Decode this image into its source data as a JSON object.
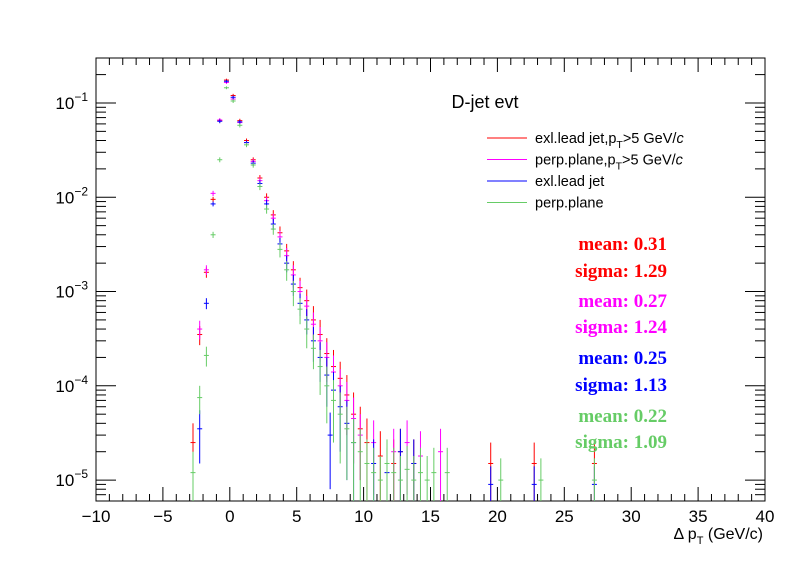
{
  "chart_data": {
    "type": "scatter",
    "title": "D-jet evt",
    "xlabel": "Δ p_T (GeV/c)",
    "xlabel_parts": {
      "pre": "Δ p",
      "sub": "T",
      "post": " (GeV/c)"
    },
    "ylabel": "",
    "xlim": [
      -10,
      40
    ],
    "ylim": [
      6e-06,
      0.3
    ],
    "y_scale": "log",
    "grid": false,
    "legend_position": "top-right",
    "x_ticks": [
      "−10",
      "−5",
      "0",
      "5",
      "10",
      "15",
      "20",
      "25",
      "30",
      "35",
      "40"
    ],
    "x_tick_values": [
      -10,
      -5,
      0,
      5,
      10,
      15,
      20,
      25,
      30,
      35,
      40
    ],
    "y_ticks": [
      {
        "value": 1e-05,
        "base": "10",
        "exp": "−5"
      },
      {
        "value": 0.0001,
        "base": "10",
        "exp": "−4"
      },
      {
        "value": 0.001,
        "base": "10",
        "exp": "−3"
      },
      {
        "value": 0.01,
        "base": "10",
        "exp": "−2"
      },
      {
        "value": 0.1,
        "base": "10",
        "exp": "−1"
      }
    ],
    "series": [
      {
        "name": "exl.lead jet,p_T>5 GeV/c",
        "label_parts": {
          "pre": "exl.lead jet,p",
          "sub": "T",
          "post": ">5 GeV/",
          "italic": "c"
        },
        "color": "#ff0000",
        "stats": {
          "mean": "mean: 0.31",
          "sigma": "sigma: 1.29"
        },
        "points": [
          [
            -2.75,
            2.5e-05,
            1.5e-05
          ],
          [
            -2.25,
            0.00035,
            8e-05
          ],
          [
            -1.75,
            0.0016,
            0.0002
          ],
          [
            -1.25,
            0.0095,
            0.0006
          ],
          [
            -0.75,
            0.065,
            0.003
          ],
          [
            -0.25,
            0.175,
            0.006
          ],
          [
            0.25,
            0.12,
            0.005
          ],
          [
            0.75,
            0.065,
            0.003
          ],
          [
            1.25,
            0.04,
            0.002
          ],
          [
            1.75,
            0.025,
            0.0015
          ],
          [
            2.25,
            0.016,
            0.0012
          ],
          [
            2.75,
            0.01,
            0.001
          ],
          [
            3.25,
            0.0065,
            0.0008
          ],
          [
            3.75,
            0.0042,
            0.0007
          ],
          [
            4.25,
            0.0027,
            0.0005
          ],
          [
            4.75,
            0.0017,
            0.0004
          ],
          [
            5.25,
            0.0011,
            0.0003
          ],
          [
            5.75,
            0.0008,
            0.00025
          ],
          [
            6.25,
            0.0005,
            0.0002
          ],
          [
            6.75,
            0.00035,
            0.00015
          ],
          [
            7.25,
            0.00022,
            0.0001
          ],
          [
            7.75,
            0.00016,
            8e-05
          ],
          [
            8.25,
            0.00012,
            6e-05
          ],
          [
            8.75,
            8e-05,
            5e-05
          ],
          [
            9.25,
            5e-05,
            3.5e-05
          ],
          [
            9.75,
            3.5e-05,
            2.5e-05
          ],
          [
            10.25,
            2.5e-05,
            2e-05
          ],
          [
            11.25,
            1.8e-05,
            1.5e-05
          ],
          [
            12.25,
            1.5e-05,
            1.2e-05
          ],
          [
            12.75,
            2e-05,
            1.5e-05
          ],
          [
            13.75,
            1.5e-05,
            1.2e-05
          ],
          [
            19.5,
            1.5e-05,
            1e-05
          ],
          [
            22.75,
            1.5e-05,
            1e-05
          ],
          [
            27.25,
            1.5e-05,
            1e-05
          ]
        ]
      },
      {
        "name": "perp.plane,p_T>5 GeV/c",
        "label_parts": {
          "pre": "perp.plane,p",
          "sub": "T",
          "post": ">5 GeV/",
          "italic": "c"
        },
        "color": "#ff00ff",
        "stats": {
          "mean": "mean: 0.27",
          "sigma": "sigma: 1.24"
        },
        "points": [
          [
            -2.25,
            0.0004,
            9e-05
          ],
          [
            -1.75,
            0.0017,
            0.0002
          ],
          [
            -1.25,
            0.011,
            0.0007
          ],
          [
            -0.75,
            0.066,
            0.003
          ],
          [
            -0.25,
            0.165,
            0.006
          ],
          [
            0.25,
            0.11,
            0.005
          ],
          [
            0.75,
            0.062,
            0.003
          ],
          [
            1.25,
            0.038,
            0.002
          ],
          [
            1.75,
            0.024,
            0.0015
          ],
          [
            2.25,
            0.015,
            0.0012
          ],
          [
            2.75,
            0.0092,
            0.0009
          ],
          [
            3.25,
            0.006,
            0.0007
          ],
          [
            3.75,
            0.0038,
            0.0006
          ],
          [
            4.25,
            0.0024,
            0.0005
          ],
          [
            4.75,
            0.0015,
            0.0004
          ],
          [
            5.25,
            0.001,
            0.0003
          ],
          [
            5.75,
            0.0007,
            0.0002
          ],
          [
            6.25,
            0.00045,
            0.00015
          ],
          [
            6.75,
            0.0003,
            0.00012
          ],
          [
            7.25,
            0.0002,
            9e-05
          ],
          [
            7.75,
            0.00014,
            7e-05
          ],
          [
            8.25,
            0.0001,
            5e-05
          ],
          [
            8.75,
            7e-05,
            4e-05
          ],
          [
            9.25,
            4.5e-05,
            3e-05
          ],
          [
            9.75,
            3e-05,
            2e-05
          ],
          [
            10.75,
            2.5e-05,
            1.8e-05
          ],
          [
            12.25,
            2e-05,
            1.5e-05
          ],
          [
            13.25,
            2.5e-05,
            1.8e-05
          ],
          [
            14.25,
            1.8e-05,
            1.5e-05
          ],
          [
            15.75,
            2e-05,
            1.5e-05
          ]
        ]
      },
      {
        "name": "exl.lead jet",
        "label_parts": {
          "pre": "exl.lead jet",
          "sub": "",
          "post": "",
          "italic": ""
        },
        "color": "#0000ff",
        "stats": {
          "mean": "mean: 0.25",
          "sigma": "sigma: 1.13"
        },
        "points": [
          [
            -2.25,
            3.5e-05,
            2e-05
          ],
          [
            -1.75,
            0.00075,
            0.0001
          ],
          [
            -1.25,
            0.0085,
            0.0005
          ],
          [
            -0.75,
            0.064,
            0.003
          ],
          [
            -0.25,
            0.17,
            0.006
          ],
          [
            0.25,
            0.115,
            0.005
          ],
          [
            0.75,
            0.063,
            0.003
          ],
          [
            1.25,
            0.038,
            0.002
          ],
          [
            1.75,
            0.023,
            0.0015
          ],
          [
            2.25,
            0.014,
            0.0011
          ],
          [
            2.75,
            0.0085,
            0.0009
          ],
          [
            3.25,
            0.0052,
            0.0007
          ],
          [
            3.75,
            0.0032,
            0.0005
          ],
          [
            4.25,
            0.002,
            0.0004
          ],
          [
            4.75,
            0.0012,
            0.0003
          ],
          [
            5.25,
            0.00075,
            0.0002
          ],
          [
            5.75,
            0.0005,
            0.00015
          ],
          [
            6.25,
            0.0003,
            0.00012
          ],
          [
            6.75,
            0.0002,
            9e-05
          ],
          [
            7.25,
            0.00013,
            7e-05
          ],
          [
            7.75,
            9e-05,
            5e-05
          ],
          [
            8.25,
            6e-05,
            4e-05
          ],
          [
            8.75,
            4e-05,
            3e-05
          ],
          [
            9.25,
            2.5e-05,
            2e-05
          ],
          [
            7.5,
            3e-05,
            2.2e-05
          ],
          [
            10.75,
            1.5e-05,
            1.2e-05
          ],
          [
            11.75,
            1.2e-05,
            1e-05
          ],
          [
            12.75,
            2e-05,
            1.5e-05
          ],
          [
            13.75,
            1.5e-05,
            1.2e-05
          ],
          [
            19.5,
            9e-06,
            5e-06
          ],
          [
            22.75,
            9e-06,
            5e-06
          ],
          [
            27.25,
            9e-06,
            5e-06
          ]
        ]
      },
      {
        "name": "perp.plane",
        "label_parts": {
          "pre": "perp.plane",
          "sub": "",
          "post": "",
          "italic": ""
        },
        "color": "#66cc66",
        "stats": {
          "mean": "mean: 0.22",
          "sigma": "sigma: 1.09"
        },
        "points": [
          [
            -2.75,
            1.2e-05,
            8e-06
          ],
          [
            -2.25,
            7.5e-05,
            2.5e-05
          ],
          [
            -1.75,
            0.00021,
            5e-05
          ],
          [
            -1.25,
            0.004,
            0.0003
          ],
          [
            -0.75,
            0.025,
            0.0015
          ],
          [
            -0.25,
            0.145,
            0.005
          ],
          [
            0.25,
            0.105,
            0.005
          ],
          [
            0.75,
            0.058,
            0.003
          ],
          [
            1.25,
            0.036,
            0.002
          ],
          [
            1.75,
            0.022,
            0.0014
          ],
          [
            2.25,
            0.013,
            0.0011
          ],
          [
            2.75,
            0.0075,
            0.0008
          ],
          [
            3.25,
            0.0046,
            0.0006
          ],
          [
            3.75,
            0.0028,
            0.0005
          ],
          [
            4.25,
            0.0017,
            0.0004
          ],
          [
            4.75,
            0.001,
            0.0003
          ],
          [
            5.25,
            0.00065,
            0.0002
          ],
          [
            5.75,
            0.0004,
            0.00015
          ],
          [
            6.25,
            0.00025,
            0.0001
          ],
          [
            6.75,
            0.00016,
            8e-05
          ],
          [
            7.25,
            0.0001,
            6e-05
          ],
          [
            7.75,
            7e-05,
            4.5e-05
          ],
          [
            8.25,
            5e-05,
            3.5e-05
          ],
          [
            8.75,
            3.5e-05,
            2.5e-05
          ],
          [
            9.25,
            2.5e-05,
            2e-05
          ],
          [
            9.75,
            2e-05,
            1.5e-05
          ],
          [
            10.25,
            1.5e-05,
            1.2e-05
          ],
          [
            10.75,
            1.2e-05,
            1e-05
          ],
          [
            11.25,
            1e-05,
            8e-06
          ],
          [
            11.75,
            1.5e-05,
            1.2e-05
          ],
          [
            12.25,
            1.2e-05,
            1e-05
          ],
          [
            12.75,
            1e-05,
            8e-06
          ],
          [
            13.25,
            1.3e-05,
            1e-05
          ],
          [
            13.75,
            1e-05,
            8e-06
          ],
          [
            14.25,
            1.2e-05,
            1e-05
          ],
          [
            14.75,
            1e-05,
            8e-06
          ],
          [
            15.25,
            1.2e-05,
            1e-05
          ],
          [
            16.25,
            1.2e-05,
            1e-05
          ],
          [
            20.25,
            1e-05,
            7e-06
          ],
          [
            23.25,
            1e-05,
            7e-06
          ],
          [
            27.25,
            1e-05,
            7e-06
          ]
        ]
      }
    ]
  }
}
